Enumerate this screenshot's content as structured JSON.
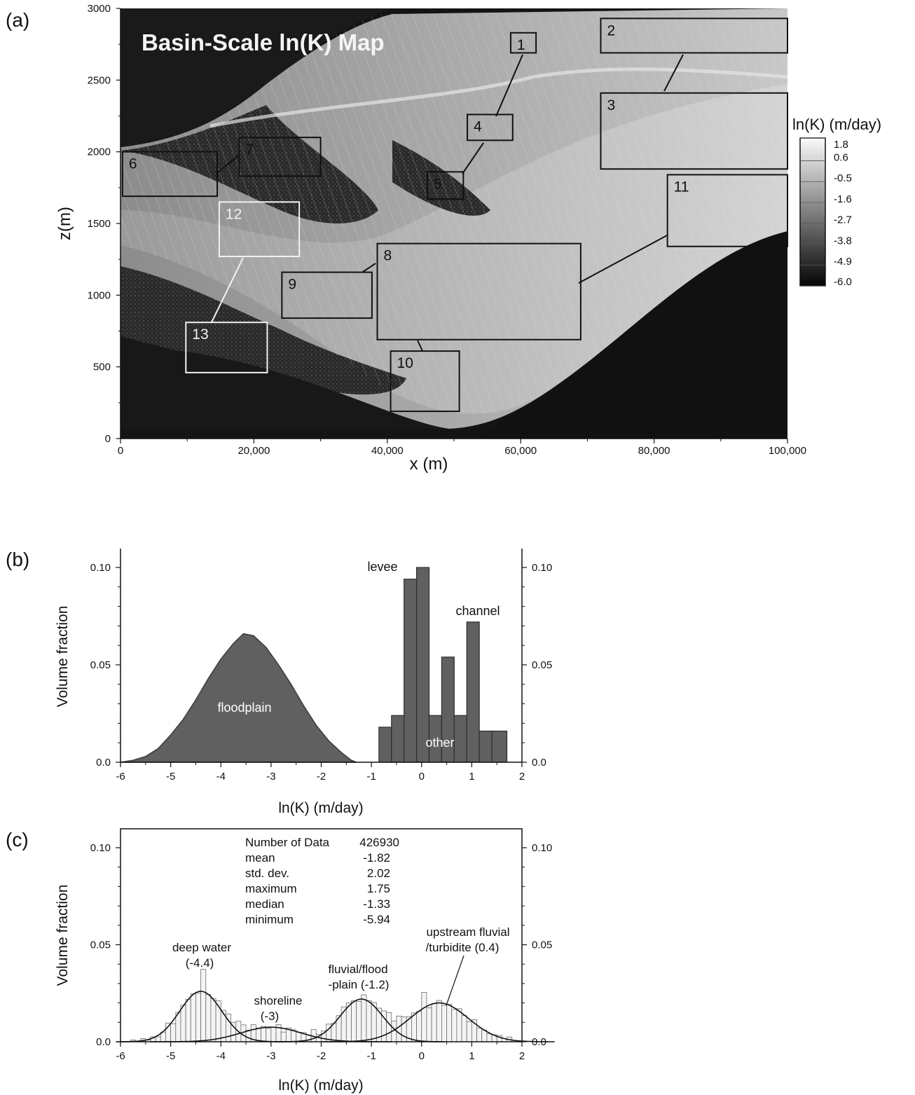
{
  "figure": {
    "panel_labels": [
      "(a)",
      "(b)",
      "(c)"
    ]
  },
  "chart_data": [
    {
      "type": "heatmap",
      "panel": "(a)",
      "title": "Basin-Scale ln(K) Map",
      "xlabel": "x (m)",
      "ylabel": "z(m)",
      "xlim": [
        0,
        100000
      ],
      "ylim": [
        0,
        3000
      ],
      "xticks": [
        "0",
        "20,000",
        "40,000",
        "60,000",
        "80,000",
        "100,000"
      ],
      "yticks": [
        "0",
        "500",
        "1000",
        "1500",
        "2000",
        "2500",
        "3000"
      ],
      "colorbar": {
        "title": "ln(K) (m/day)",
        "levels": [
          "1.8",
          "0.6",
          "-0.5",
          "-1.6",
          "-2.7",
          "-3.8",
          "-4.9",
          "-6.0"
        ],
        "range": [
          -6.0,
          1.8
        ]
      },
      "boxes": [
        {
          "label": "1",
          "x": [
            58500,
            62300
          ],
          "z": [
            2690,
            2830
          ],
          "color": "black"
        },
        {
          "label": "2",
          "x": [
            72000,
            100000
          ],
          "z": [
            2690,
            2930
          ],
          "color": "black"
        },
        {
          "label": "3",
          "x": [
            72000,
            100000
          ],
          "z": [
            1880,
            2410
          ],
          "color": "black"
        },
        {
          "label": "4",
          "x": [
            52000,
            58800
          ],
          "z": [
            2080,
            2260
          ],
          "color": "black"
        },
        {
          "label": "5",
          "x": [
            46000,
            51400
          ],
          "z": [
            1670,
            1860
          ],
          "color": "black"
        },
        {
          "label": "6",
          "x": [
            300,
            14500
          ],
          "z": [
            1690,
            2000
          ],
          "color": "black"
        },
        {
          "label": "7",
          "x": [
            17800,
            30000
          ],
          "z": [
            1830,
            2100
          ],
          "color": "black"
        },
        {
          "label": "8",
          "x": [
            38500,
            69000
          ],
          "z": [
            690,
            1360
          ],
          "color": "black"
        },
        {
          "label": "9",
          "x": [
            24200,
            37700
          ],
          "z": [
            840,
            1160
          ],
          "color": "black"
        },
        {
          "label": "10",
          "x": [
            40500,
            50800
          ],
          "z": [
            190,
            610
          ],
          "color": "black"
        },
        {
          "label": "11",
          "x": [
            82000,
            100000
          ],
          "z": [
            1340,
            1840
          ],
          "color": "black"
        },
        {
          "label": "12",
          "x": [
            14800,
            26800
          ],
          "z": [
            1270,
            1650
          ],
          "color": "white"
        },
        {
          "label": "13",
          "x": [
            9800,
            22000
          ],
          "z": [
            460,
            810
          ],
          "color": "white"
        }
      ]
    },
    {
      "type": "area",
      "panel": "(b)",
      "xlabel": "ln(K) (m/day)",
      "ylabel": "Volume fraction",
      "xlim": [
        -6,
        2
      ],
      "ylim": [
        0,
        0.1
      ],
      "xticks": [
        "-6",
        "-5",
        "-4",
        "-3",
        "-2",
        "-1",
        "0",
        "1",
        "2"
      ],
      "yticks": [
        "0.0",
        "0.05",
        "0.10"
      ],
      "floodplain_curve": {
        "name": "floodplain",
        "x": [
          -6.0,
          -5.75,
          -5.5,
          -5.25,
          -5.0,
          -4.75,
          -4.5,
          -4.25,
          -4.0,
          -3.75,
          -3.55,
          -3.35,
          -3.1,
          -2.85,
          -2.6,
          -2.35,
          -2.1,
          -1.85,
          -1.6,
          -1.4,
          -1.3
        ],
        "y": [
          0.0,
          0.001,
          0.003,
          0.007,
          0.014,
          0.022,
          0.032,
          0.043,
          0.053,
          0.061,
          0.066,
          0.065,
          0.059,
          0.05,
          0.04,
          0.029,
          0.019,
          0.011,
          0.005,
          0.001,
          0.0
        ]
      },
      "bars": {
        "edges": [
          -0.85,
          -0.6,
          -0.35,
          -0.1,
          0.15,
          0.4,
          0.65,
          0.9,
          1.15,
          1.4,
          1.7
        ],
        "values": [
          0.018,
          0.024,
          0.094,
          0.1,
          0.024,
          0.054,
          0.024,
          0.072,
          0.016,
          0.016
        ]
      },
      "annotations": [
        "floodplain",
        "other",
        "levee",
        "channel"
      ]
    },
    {
      "type": "bar",
      "panel": "(c)",
      "xlabel": "ln(K) (m/day)",
      "ylabel": "Volume fraction",
      "xlim": [
        -6,
        2
      ],
      "ylim": [
        0,
        0.1
      ],
      "xticks": [
        "-6",
        "-5",
        "-4",
        "-3",
        "-2",
        "-1",
        "0",
        "1",
        "2"
      ],
      "yticks": [
        "0.0",
        "0.05",
        "0.10"
      ],
      "bin_width": 0.1,
      "components": [
        {
          "mean": -4.4,
          "sd": 0.42,
          "amp": 0.026
        },
        {
          "mean": -3.0,
          "sd": 0.6,
          "amp": 0.0075
        },
        {
          "mean": -1.2,
          "sd": 0.42,
          "amp": 0.022
        },
        {
          "mean": 0.35,
          "sd": 0.58,
          "amp": 0.02
        }
      ],
      "stats": {
        "labels": [
          "Number of Data",
          "mean",
          "std. dev.",
          "maximum",
          "median",
          "minimum"
        ],
        "values": [
          "426930",
          "-1.82",
          "2.02",
          "1.75",
          "-1.33",
          "-5.94"
        ]
      },
      "annotations": {
        "deep_water": [
          "deep water",
          "(-4.4)"
        ],
        "shoreline": [
          "shoreline",
          "(-3)"
        ],
        "fluvial": [
          "fluvial/flood",
          "-plain (-1.2)"
        ],
        "upstream": [
          "upstream fluvial",
          "/turbidite (0.4)"
        ]
      }
    }
  ]
}
